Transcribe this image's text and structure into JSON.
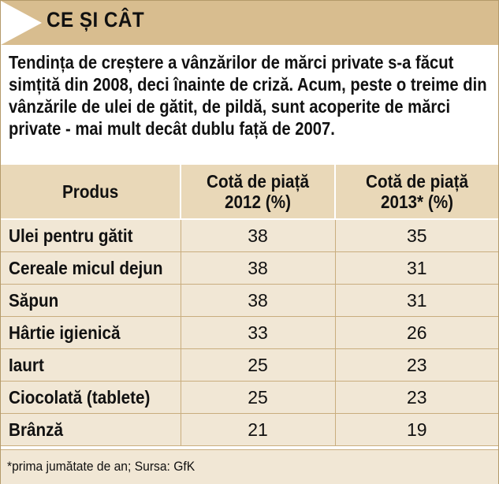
{
  "header": {
    "title": "CE ȘI CÂT"
  },
  "intro": "Tendința de creștere a vânzărilor de mărci private s-a făcut simțită din 2008, deci înainte de criză. Acum, peste o treime din vânzările de ulei de gătit, de pildă, sunt acoperite de mărci private - mai mult decât dublu față de 2007.",
  "table": {
    "headers": [
      "Produs",
      "Cotă de piață 2012 (%)",
      "Cotă de piață 2013* (%)"
    ],
    "rows": [
      {
        "product": "Ulei pentru gătit",
        "y2012": "38",
        "y2013": "35"
      },
      {
        "product": "Cereale micul dejun",
        "y2012": "38",
        "y2013": "31"
      },
      {
        "product": "Săpun",
        "y2012": "38",
        "y2013": "31"
      },
      {
        "product": "Hârtie igienică",
        "y2012": "33",
        "y2013": "26"
      },
      {
        "product": "Iaurt",
        "y2012": "25",
        "y2013": "23"
      },
      {
        "product": "Ciocolată (tablete)",
        "y2012": "25",
        "y2013": "23"
      },
      {
        "product": "Brânză",
        "y2012": "21",
        "y2013": "19"
      }
    ]
  },
  "footnote": "*prima jumătate de an; Sursa: GfK",
  "colors": {
    "header_band": "#d8bd8f",
    "table_header": "#e9d8b8",
    "alt_row": "#f1e7d5",
    "rule": "#c9ad7e"
  }
}
